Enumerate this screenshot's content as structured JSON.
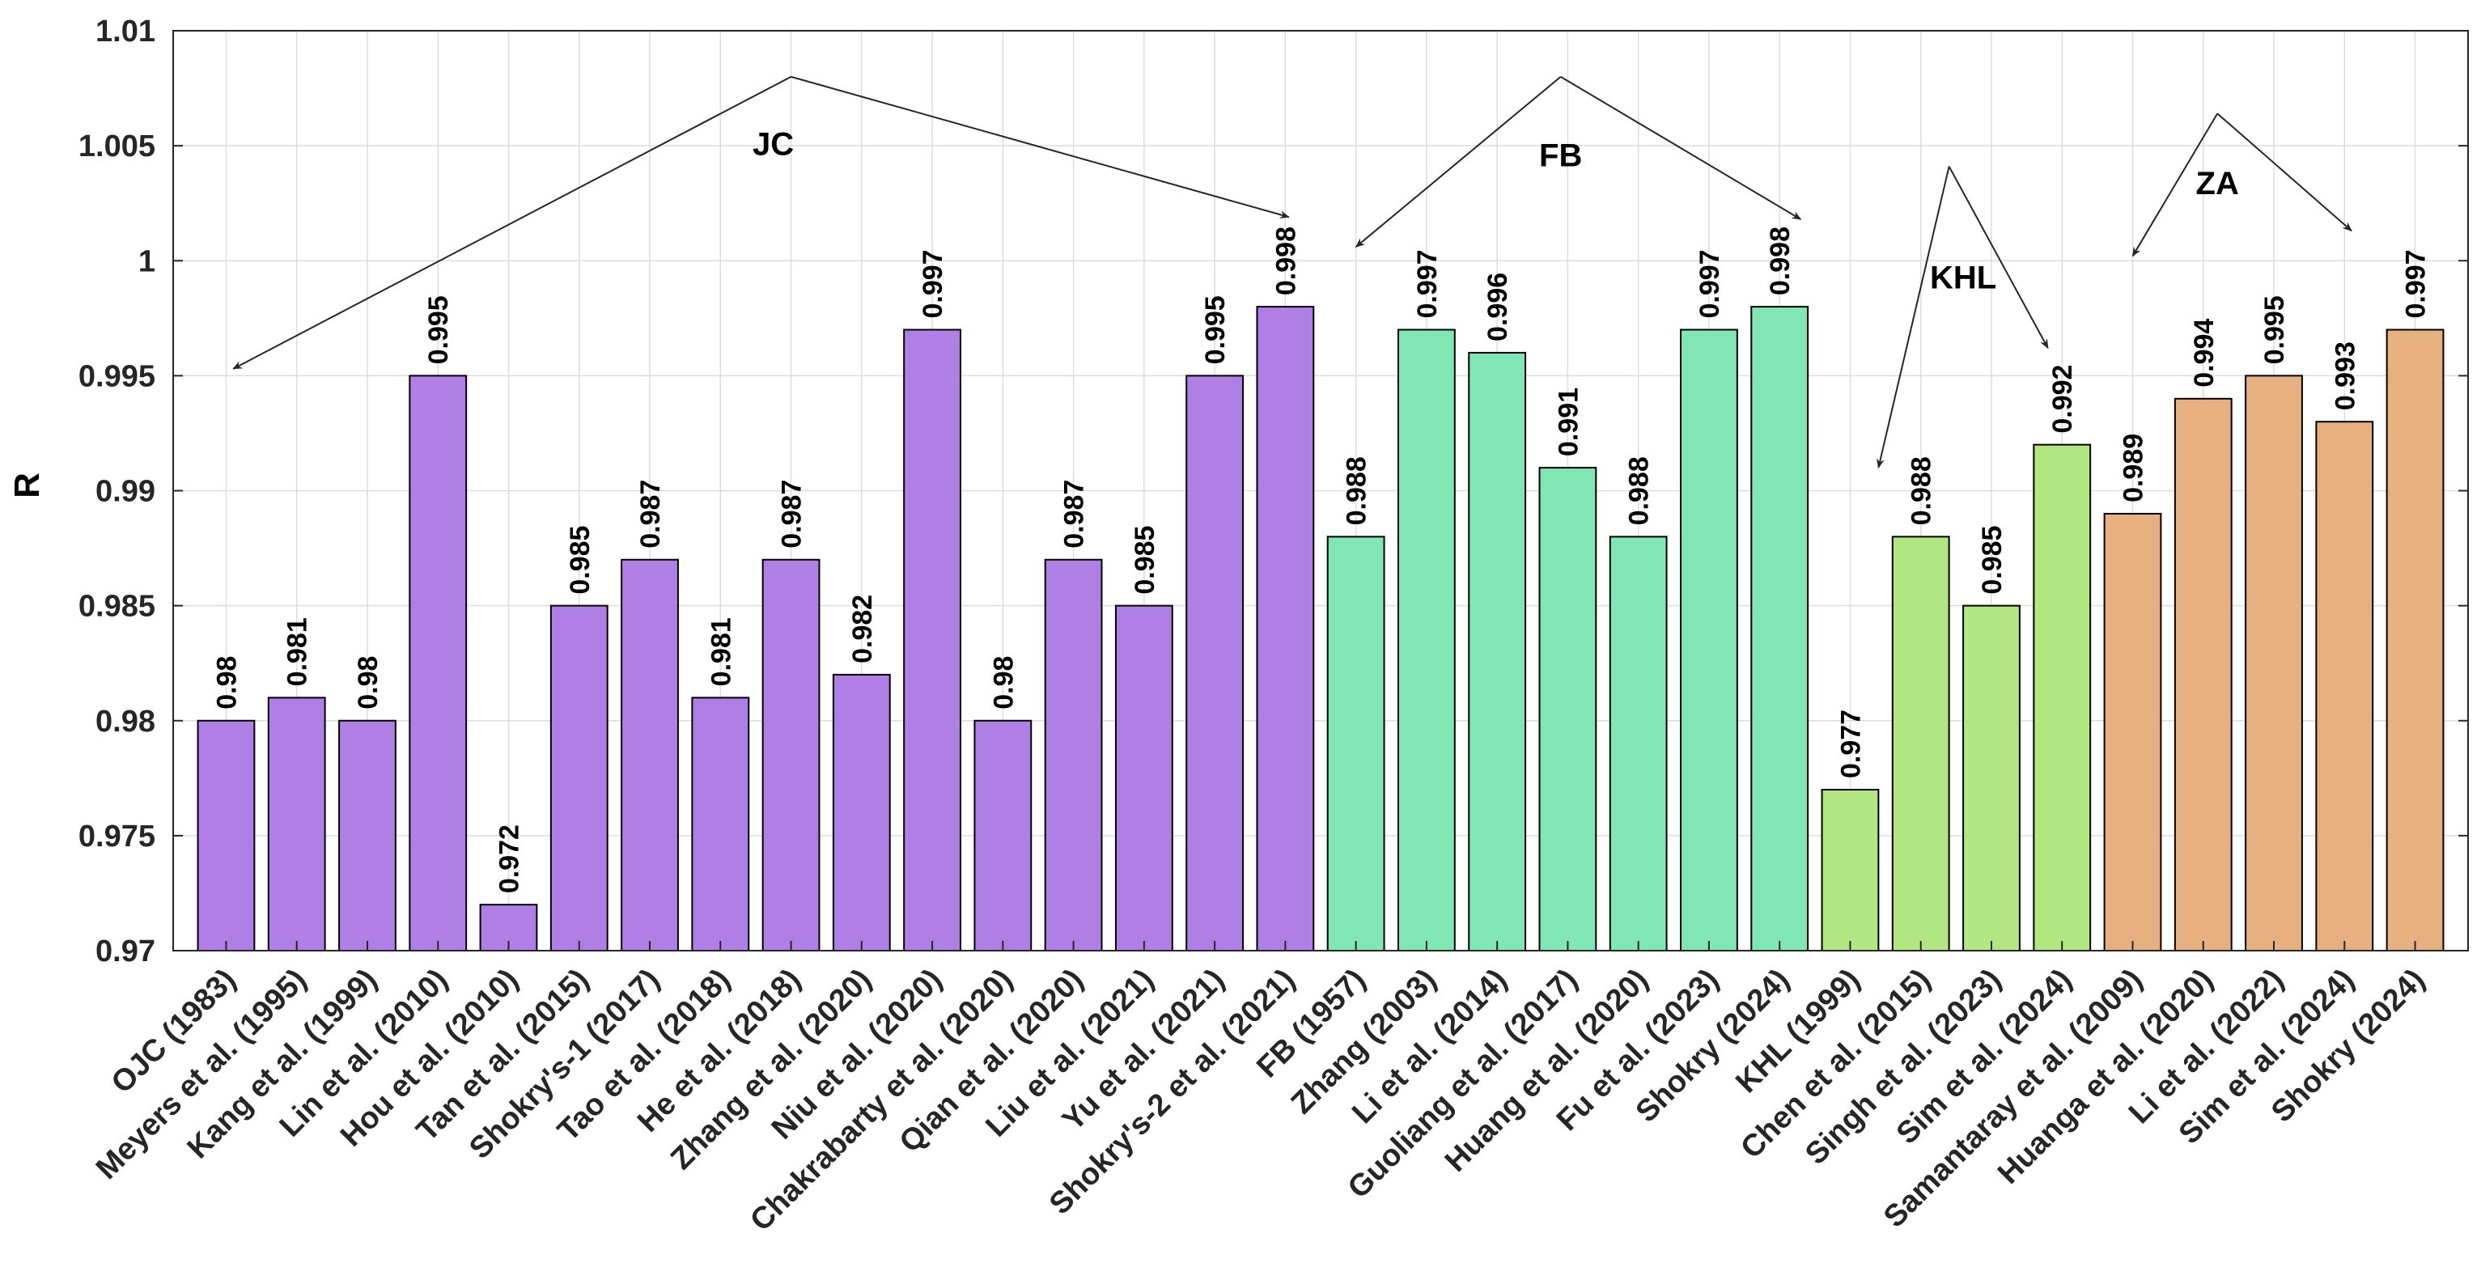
{
  "chart_data": {
    "type": "bar",
    "title": "",
    "xlabel": "",
    "ylabel": "R",
    "ylim": [
      0.97,
      1.01
    ],
    "yticks": [
      0.97,
      0.975,
      0.98,
      0.985,
      0.99,
      0.995,
      1,
      1.005,
      1.01
    ],
    "ytick_labels": [
      "0.97",
      "0.975",
      "0.98",
      "0.985",
      "0.99",
      "0.995",
      "1",
      "1.005",
      "1.01"
    ],
    "grid": true,
    "groups": [
      {
        "name": "JC",
        "color": "#B07FE6",
        "arrow_label": "JC"
      },
      {
        "name": "FB",
        "color": "#80E6B3",
        "arrow_label": "FB"
      },
      {
        "name": "KHL",
        "color": "#B2E680",
        "arrow_label": "KHL"
      },
      {
        "name": "ZA",
        "color": "#E6B080",
        "arrow_label": "ZA"
      }
    ],
    "categories": [
      "OJC (1983)",
      "Meyers et al. (1995)",
      "Kang et al. (1999)",
      "Lin et al. (2010)",
      "Hou et al. (2010)",
      "Tan et al. (2015)",
      "Shokry's-1 (2017)",
      "Tao et al. (2018)",
      "He et al. (2018)",
      "Zhang et al. (2020)",
      "Niu et al. (2020)",
      "Chakrabarty et al. (2020)",
      "Qian et al. (2020)",
      "Liu et al. (2021)",
      "Yu et al. (2021)",
      "Shokry's-2 et al. (2021)",
      "FB (1957)",
      "Zhang (2003)",
      "Li et al. (2014)",
      "Guoliang et al. (2017)",
      "Huang et al. (2020)",
      "Fu et al. (2023)",
      "Shokry (2024)",
      "KHL (1999)",
      "Chen et al. (2015)",
      "Singh et al. (2023)",
      "Sim et al. (2024)",
      "Samantaray et al. (2009)",
      "Huanga et al. (2020)",
      "Li et al. (2022)",
      "Sim et al. (2024)",
      "Shokry (2024)"
    ],
    "values": [
      0.98,
      0.981,
      0.98,
      0.995,
      0.972,
      0.985,
      0.987,
      0.981,
      0.987,
      0.982,
      0.997,
      0.98,
      0.987,
      0.985,
      0.995,
      0.998,
      0.988,
      0.997,
      0.996,
      0.991,
      0.988,
      0.997,
      0.998,
      0.977,
      0.988,
      0.985,
      0.992,
      0.989,
      0.994,
      0.995,
      0.993,
      0.997
    ],
    "value_labels": [
      "0.98",
      "0.981",
      "0.98",
      "0.995",
      "0.972",
      "0.985",
      "0.987",
      "0.981",
      "0.987",
      "0.982",
      "0.997",
      "0.98",
      "0.987",
      "0.985",
      "0.995",
      "0.998",
      "0.988",
      "0.997",
      "0.996",
      "0.991",
      "0.988",
      "0.997",
      "0.998",
      "0.977",
      "0.988",
      "0.985",
      "0.992",
      "0.989",
      "0.994",
      "0.995",
      "0.993",
      "0.997"
    ],
    "bar_group": [
      0,
      0,
      0,
      0,
      0,
      0,
      0,
      0,
      0,
      0,
      0,
      0,
      0,
      0,
      0,
      0,
      1,
      1,
      1,
      1,
      1,
      1,
      1,
      2,
      2,
      2,
      2,
      3,
      3,
      3,
      3,
      3
    ]
  }
}
